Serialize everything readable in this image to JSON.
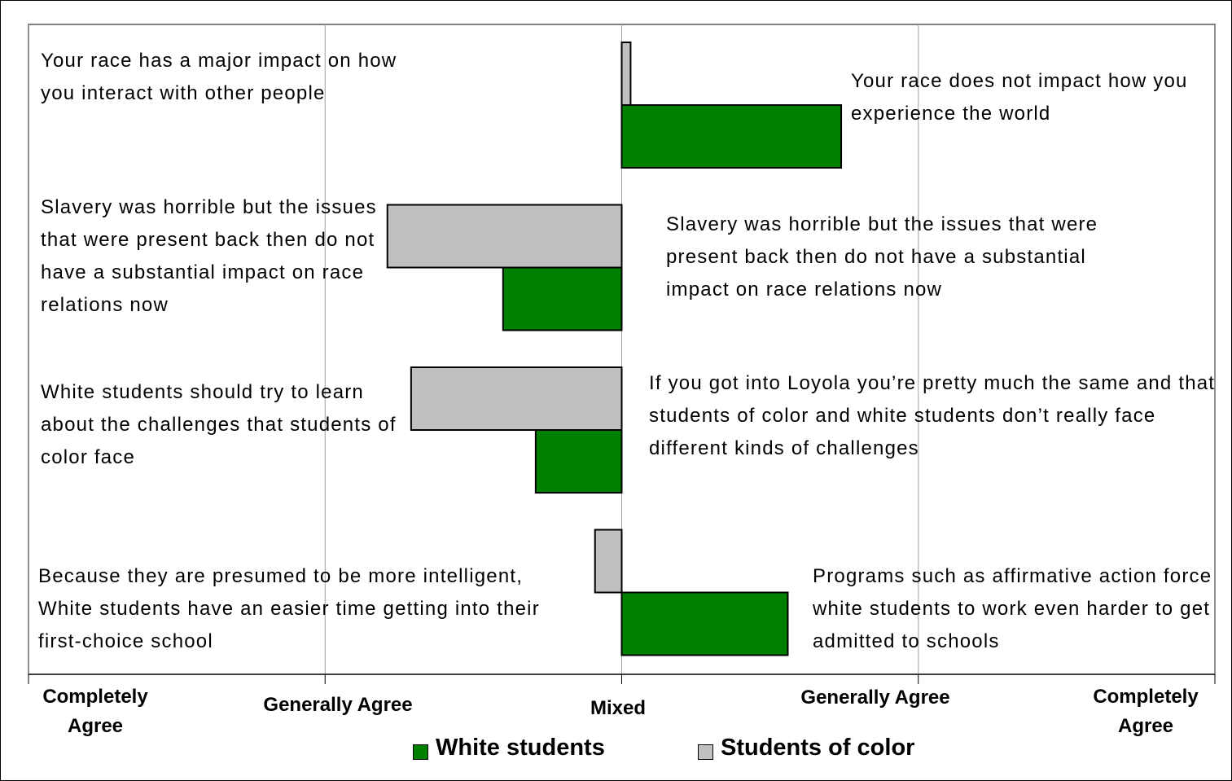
{
  "chart_data": {
    "type": "diverging-bar",
    "left_labels": [
      "Your race has a major impact on how you interact with other people",
      "Slavery was horrible but the issues that were present back then do not have a substantial impact on race relations now",
      "White students should try to learn about the challenges that students of color face",
      "Because they are presumed to be more intelligent, White students have an easier time getting into their first-choice school"
    ],
    "right_labels": [
      "Your race does not impact how you experience the world",
      "Slavery was horrible but the issues that were present back then do not have a substantial impact on race relations now",
      "If you got into Loyola you’re pretty much the same and that students of color and white students don’t really face different kinds of challenges",
      "Programs such as affirmative action force white students to work even harder to get admitted to schools"
    ],
    "series": [
      {
        "name": "White students",
        "color": "#008000",
        "values": [
          0.74,
          -0.4,
          -0.29,
          0.56
        ]
      },
      {
        "name": "Students of color",
        "color": "#c0c0c0",
        "values": [
          0.03,
          -0.79,
          -0.71,
          -0.09
        ]
      }
    ],
    "xlim": [
      -2,
      2
    ],
    "xticks": [
      {
        "value": -2,
        "label": "Completely Agree"
      },
      {
        "value": -1,
        "label": "Generally Agree"
      },
      {
        "value": 0,
        "label": "Mixed"
      },
      {
        "value": 1,
        "label": "Generally Agree"
      },
      {
        "value": 2,
        "label": "Completely Agree"
      }
    ],
    "grid": true
  }
}
